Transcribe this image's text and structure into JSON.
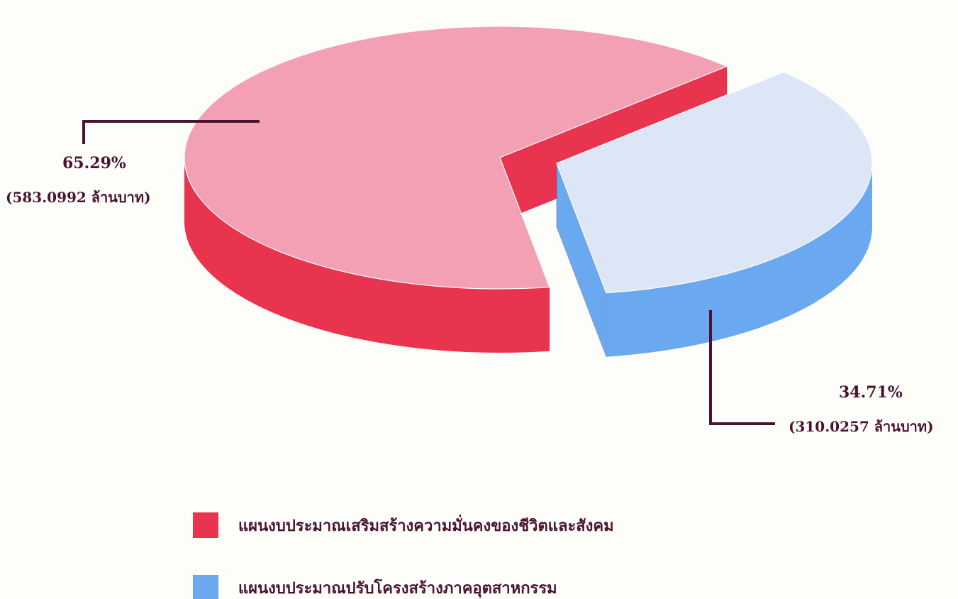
{
  "chart_data": {
    "type": "pie",
    "style": "3d-exploded",
    "title": "",
    "unit": "ล้านบาท",
    "slices": [
      {
        "name": "แผนงบประมาณเสริมสร้างความมั่นคงของชีวิตและสังคม",
        "percent": 65.29,
        "value": 583.0992,
        "percent_label": "65.29%",
        "value_label": "(583.0992 ล้านบาท)",
        "color_top": "#f4a0b4",
        "color_side": "#e8344e"
      },
      {
        "name": "แผนงบประมาณปรับโครงสร้างภาคอุตสาหกรรม",
        "percent": 34.71,
        "value": 310.0257,
        "percent_label": "34.71%",
        "value_label": "(310.0257 ล้านบาท)",
        "color_top": "#dde6f6",
        "color_side": "#6aa8f0"
      }
    ],
    "legend_position": "bottom"
  },
  "colors": {
    "leader_line": "#4a1430",
    "text": "#4a1430",
    "background": "#fdfdf9"
  }
}
